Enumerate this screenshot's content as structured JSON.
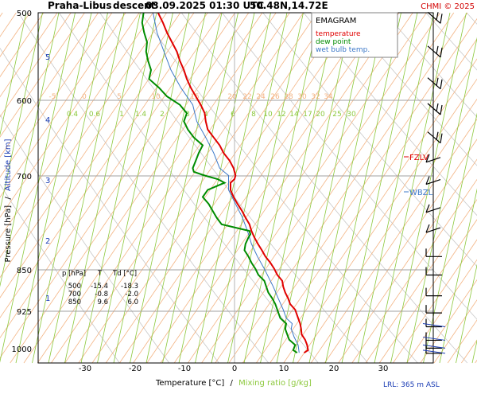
{
  "header": {
    "station": "Praha-Libus",
    "mode": "descent",
    "datetime": "03.09.2025 01:30 UTC",
    "coords": "50.48N,14.72E",
    "credit": "CHMI © 2025"
  },
  "legend": {
    "title": "EMAGRAM",
    "temperature": "temperature",
    "dewpoint": "dew point",
    "wetbulb": "wet bulb temp."
  },
  "colors": {
    "temperature": "#e00000",
    "dewpoint": "#008c00",
    "wetbulb": "#3c78c8",
    "dry_adiabat": "#c8c8c8",
    "isotherm": "#f3b483",
    "mixing_ratio": "#8cc83c",
    "altitude": "#1a3cb4",
    "credit": "#d20000"
  },
  "axes": {
    "ylabel_pressure": "Pressure [hPa]",
    "ylabel_sep": "/",
    "ylabel_altitude": "Altitude [km]",
    "xlabel_temp": "Temperature [°C]",
    "xlabel_sep": "/",
    "xlabel_mix": "Mixing ratio [g/kg]",
    "pressure_ticks": [
      "500",
      "600",
      "700",
      "850",
      "925",
      "1000"
    ],
    "altitude_ticks": [
      "5",
      "4",
      "3",
      "2",
      "1"
    ],
    "temp_ticks": [
      "-30",
      "-20",
      "-10",
      "0",
      "10",
      "20",
      "30"
    ],
    "isotherm_labels": [
      "-5",
      "0",
      "5",
      "10",
      "15",
      "20",
      "22",
      "24",
      "26",
      "28",
      "30",
      "32",
      "34"
    ],
    "mixing_labels": [
      "0.4",
      "0.6",
      "1",
      "1.4",
      "2",
      "3",
      "4",
      "6",
      "8",
      "10",
      "12",
      "14",
      "17",
      "20",
      "25",
      "30"
    ]
  },
  "levels": {
    "fzlv": "FZLV",
    "wbzl": "WBZL",
    "lrl": "LRL: 365 m ASL"
  },
  "table": {
    "headers": [
      "p [hPa]",
      "T",
      "Td [°C]"
    ],
    "rows": [
      [
        "500",
        "-15.4",
        "-18.3"
      ],
      [
        "700",
        "-0.8",
        "-2.0"
      ],
      [
        "850",
        "9.6",
        "6.0"
      ]
    ]
  },
  "chart_data": {
    "type": "line",
    "title": "EMAGRAM",
    "xlabel": "Temperature [°C]",
    "ylabel": "Pressure [hPa]",
    "xlim": [
      -38,
      39
    ],
    "ylim": [
      1000,
      500
    ],
    "y_scale": "log",
    "grid": true,
    "legend_position": "top-right",
    "series": [
      {
        "name": "temperature",
        "p": [
          980,
          975,
          965,
          955,
          945,
          935,
          925,
          915,
          900,
          890,
          880,
          870,
          860,
          850,
          840,
          830,
          820,
          810,
          800,
          790,
          780,
          770,
          760,
          750,
          740,
          730,
          720,
          710,
          700,
          695,
          690,
          685,
          680,
          670,
          660,
          650,
          640,
          630,
          620,
          610,
          600,
          590,
          580,
          570,
          560,
          550,
          540,
          530,
          520,
          510,
          500
        ],
        "values": [
          14.0,
          14.8,
          14.6,
          14.2,
          13.5,
          13.4,
          13.2,
          12.8,
          12.2,
          11.2,
          10.8,
          10.2,
          9.8,
          9.6,
          8.6,
          8.0,
          7.2,
          6.2,
          5.5,
          4.7,
          4.0,
          3.4,
          3.0,
          2.2,
          1.5,
          0.6,
          -0.2,
          -0.8,
          -0.8,
          0.0,
          0.2,
          0.0,
          -0.2,
          -1.0,
          -2.2,
          -3.0,
          -4.2,
          -5.4,
          -5.8,
          -6.0,
          -6.8,
          -7.8,
          -8.8,
          -9.6,
          -10.2,
          -11.0,
          -11.6,
          -12.6,
          -13.6,
          -14.4,
          -15.4
        ]
      },
      {
        "name": "dew point",
        "p": [
          980,
          975,
          965,
          955,
          945,
          935,
          925,
          915,
          900,
          890,
          880,
          870,
          860,
          850,
          840,
          830,
          820,
          810,
          800,
          790,
          780,
          775,
          770,
          760,
          750,
          740,
          730,
          720,
          710,
          700,
          695,
          690,
          685,
          680,
          670,
          660,
          650,
          640,
          630,
          620,
          610,
          600,
          590,
          580,
          570,
          560,
          550,
          540,
          530,
          520,
          510,
          500
        ],
        "values": [
          12.6,
          11.8,
          12.2,
          11.0,
          10.6,
          10.2,
          10.4,
          9.2,
          8.6,
          8.2,
          7.6,
          6.8,
          6.4,
          6.0,
          4.8,
          4.2,
          3.4,
          2.8,
          2.0,
          2.2,
          2.8,
          3.2,
          3.0,
          -2.6,
          -3.6,
          -4.4,
          -5.2,
          -6.4,
          -5.4,
          -2.0,
          -3.4,
          -6.0,
          -8.2,
          -8.4,
          -7.8,
          -7.2,
          -6.4,
          -8.2,
          -9.4,
          -10.2,
          -9.6,
          -11.0,
          -13.6,
          -15.2,
          -17.2,
          -16.8,
          -17.4,
          -17.8,
          -17.6,
          -18.2,
          -18.6,
          -18.3
        ]
      },
      {
        "name": "wet bulb temp.",
        "p": [
          980,
          965,
          950,
          935,
          925,
          915,
          900,
          880,
          860,
          850,
          830,
          810,
          790,
          770,
          750,
          730,
          710,
          700,
          690,
          680,
          660,
          640,
          620,
          600,
          580,
          560,
          540,
          520,
          500
        ],
        "values": [
          13.0,
          12.8,
          12.0,
          11.4,
          11.6,
          10.4,
          9.8,
          8.8,
          7.8,
          7.2,
          6.0,
          4.6,
          3.4,
          2.6,
          1.6,
          0.2,
          -1.2,
          -1.2,
          -1.2,
          -3.0,
          -4.2,
          -5.8,
          -7.6,
          -8.4,
          -10.8,
          -12.8,
          -14.2,
          -15.6,
          -16.4
        ]
      }
    ],
    "table": {
      "headers": [
        "p [hPa]",
        "T",
        "Td [°C]"
      ],
      "rows": [
        [
          "500",
          -15.4,
          -18.3
        ],
        [
          "700",
          -0.8,
          -2.0
        ],
        [
          "850",
          9.6,
          6.0
        ]
      ]
    },
    "wind_profile_p": [
      505,
      540,
      575,
      605,
      640,
      670,
      700,
      740,
      770,
      805,
      835,
      870,
      900,
      925,
      950,
      965,
      975
    ],
    "freezing_level_label": "FZLV",
    "wet_bulb_zero_label": "WBZL",
    "lowest_reported_level": "LRL: 365 m ASL"
  }
}
